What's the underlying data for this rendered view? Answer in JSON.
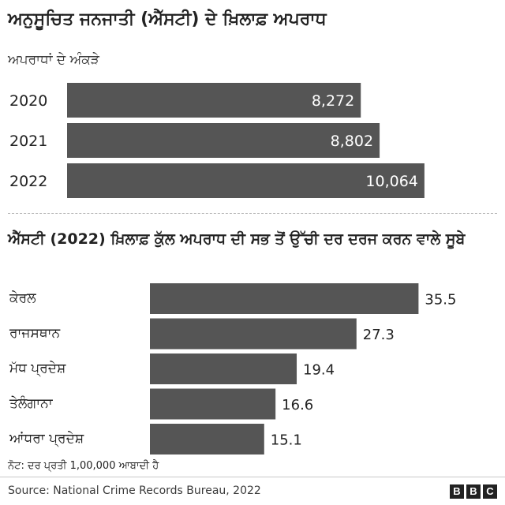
{
  "header": {
    "title": "ਅਨੁਸੂਚਿਤ ਜਨਜਾਤੀ (ਐੱਸਟੀ) ਦੇ ਖ਼ਿਲਾਫ਼ ਅਪਰਾਧ",
    "subtitle": "ਅਪਰਾਧਾਂ ਦੇ ਅੰਕੜੇ"
  },
  "section2": {
    "title": "ਐੱਸਟੀ (2022) ਖ਼ਿਲਾਫ਼ ਕੁੱਲ ਅਪਰਾਧ ਦੀ ਸਭ ਤੋਂ ਉੱਚੀ ਦਰ ਦਰਜ ਕਰਨ ਵਾਲੇ ਸੂਬੇ"
  },
  "footer": {
    "note": "ਨੋਟ: ਦਰ ਪ੍ਰਤੀ 1,00,000 ਆਬਾਦੀ ਹੈ",
    "source": "Source: National Crime Records Bureau, 2022",
    "logo": [
      "B",
      "B",
      "C"
    ]
  },
  "colors": {
    "bar": "#555555",
    "bar_label_inside": "#ffffff",
    "text": "#222222"
  },
  "chart_data": [
    {
      "type": "bar",
      "orientation": "horizontal",
      "title": "ਅਪਰਾਧਾਂ ਦੇ ਅੰਕੜੇ",
      "categories": [
        "2020",
        "2021",
        "2022"
      ],
      "values": [
        8272,
        8802,
        10064
      ],
      "value_labels": [
        "8,272",
        "8,802",
        "10,064"
      ],
      "label_position": "inside-end",
      "xlim": [
        0,
        11000
      ],
      "grid": false,
      "legend": "none"
    },
    {
      "type": "bar",
      "orientation": "horizontal",
      "title": "ਐੱਸਟੀ (2022) ਖ਼ਿਲਾਫ਼ ਕੁੱਲ ਅਪਰਾਧ ਦੀ ਸਭ ਤੋਂ ਉੱਚੀ ਦਰ ਦਰਜ ਕਰਨ ਵਾਲੇ ਸੂਬੇ",
      "categories": [
        "ਕੇਰਲ",
        "ਰਾਜਸਥਾਨ",
        "ਮੱਧ ਪ੍ਰਦੇਸ਼",
        "ਤੇਲੰਗਾਨਾ",
        "ਆਂਧਰਾ ਪ੍ਰਦੇਸ਼"
      ],
      "values": [
        35.5,
        27.3,
        19.4,
        16.6,
        15.1
      ],
      "value_labels": [
        "35.5",
        "27.3",
        "19.4",
        "16.6",
        "15.1"
      ],
      "label_position": "outside-end",
      "xlim": [
        0,
        36.5
      ],
      "grid": false,
      "legend": "none"
    }
  ]
}
